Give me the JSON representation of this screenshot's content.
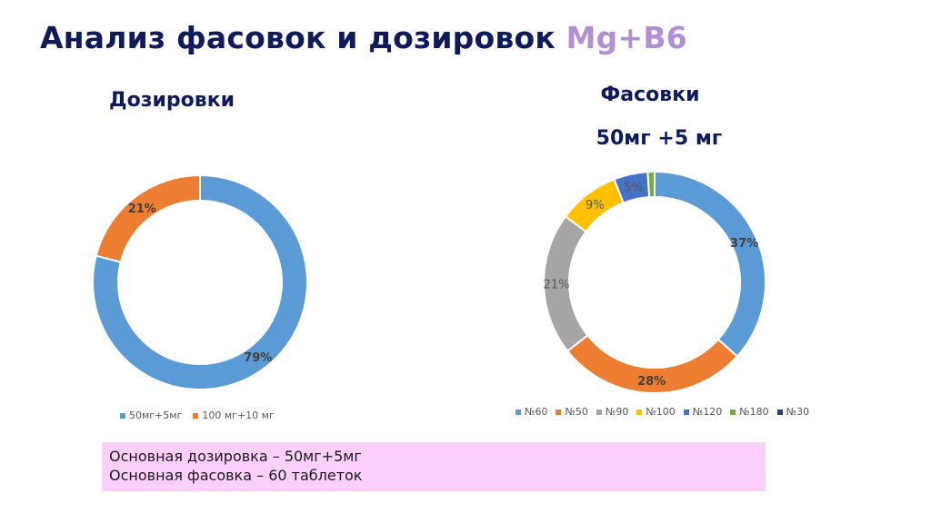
{
  "title": {
    "main": "Анализ фасовок и дозировок ",
    "accent": "Mg+B6"
  },
  "left_heading": "Дозировки",
  "right_heading_1": "Фасовки",
  "right_heading_2": "50мг +5 мг",
  "note": {
    "line1": "Основная дозировка – 50мг+5мг",
    "line2": "Основная фасовка – 60 таблеток"
  },
  "chart_data": [
    {
      "type": "pie",
      "donut": true,
      "title": "Дозировки",
      "categories": [
        "50мг+5мг",
        "100 мг+10 мг"
      ],
      "values": [
        79,
        21
      ],
      "labels": [
        "79%",
        "21%"
      ],
      "colors": [
        "#5b9bd5",
        "#ed7d31"
      ],
      "legend": "bottom"
    },
    {
      "type": "pie",
      "donut": true,
      "title": "Фасовки 50мг +5 мг",
      "categories": [
        "№60",
        "№50",
        "№90",
        "№100",
        "№120",
        "№180",
        "№30"
      ],
      "values": [
        37,
        28,
        21,
        9,
        5,
        1,
        0
      ],
      "labels": [
        "37%",
        "28%",
        "21%",
        "9%",
        "5%",
        "",
        ""
      ],
      "colors": [
        "#5b9bd5",
        "#ed7d31",
        "#a5a5a5",
        "#ffc000",
        "#4472c4",
        "#70ad47",
        "#264478"
      ],
      "legend": "bottom"
    }
  ]
}
